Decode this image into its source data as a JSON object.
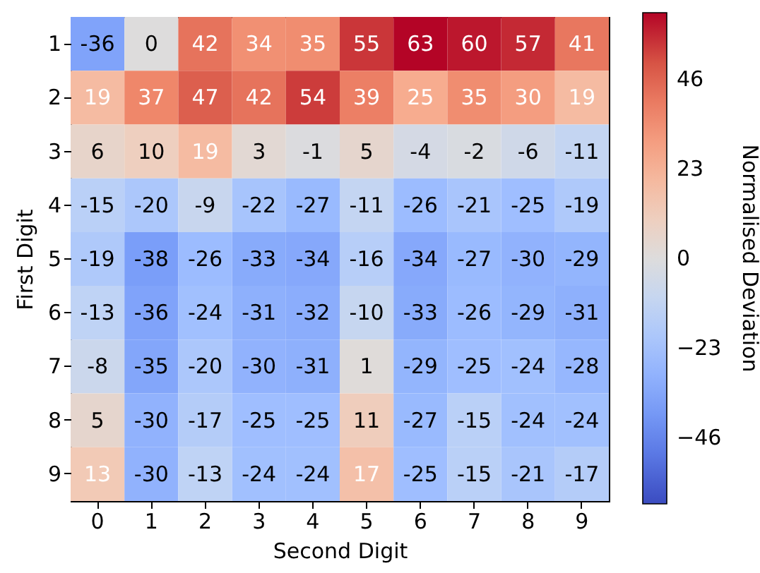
{
  "chart_data": {
    "type": "heatmap",
    "xlabel": "Second Digit",
    "ylabel": "First Digit",
    "clabel": "Normalised Deviation",
    "categories": [
      "0",
      "1",
      "2",
      "3",
      "4",
      "5",
      "6",
      "7",
      "8",
      "9"
    ],
    "y_categories": [
      "1",
      "2",
      "3",
      "4",
      "5",
      "6",
      "7",
      "8",
      "9"
    ],
    "cells": [
      [
        -36,
        0,
        42,
        34,
        35,
        55,
        63,
        60,
        57,
        41
      ],
      [
        19,
        37,
        47,
        42,
        54,
        39,
        25,
        35,
        30,
        19
      ],
      [
        6,
        10,
        19,
        3,
        -1,
        5,
        -4,
        -2,
        -6,
        -11
      ],
      [
        -15,
        -20,
        -9,
        -22,
        -27,
        -11,
        -26,
        -21,
        -25,
        -19
      ],
      [
        -19,
        -38,
        -26,
        -33,
        -34,
        -16,
        -34,
        -27,
        -30,
        -29
      ],
      [
        -13,
        -36,
        -24,
        -31,
        -32,
        -10,
        -33,
        -26,
        -29,
        -31
      ],
      [
        -8,
        -35,
        -20,
        -30,
        -31,
        1,
        -29,
        -25,
        -24,
        -28
      ],
      [
        5,
        -30,
        -17,
        -25,
        -25,
        11,
        -27,
        -15,
        -24,
        -24
      ],
      [
        13,
        -30,
        -13,
        -24,
        -24,
        17,
        -25,
        -15,
        -21,
        -17
      ]
    ],
    "clim": [
      -63,
      63
    ],
    "cticks": [
      -46,
      -23,
      0,
      23,
      46
    ],
    "data_labels": true
  }
}
